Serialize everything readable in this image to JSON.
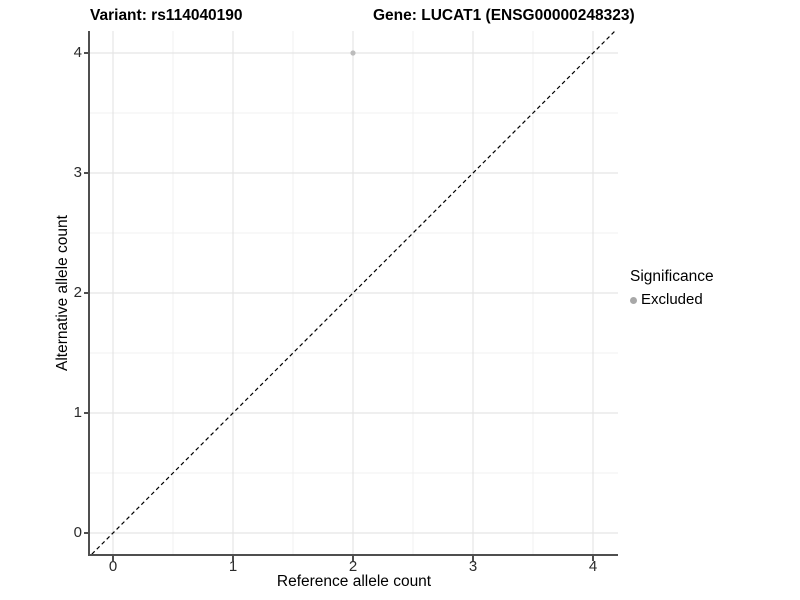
{
  "header": {
    "variant_title": "Variant: rs114040190",
    "gene_title": "Gene: LUCAT1 (ENSG00000248323)"
  },
  "axes": {
    "x_label": "Reference allele count",
    "y_label": "Alternative allele count",
    "x_tick_labels": [
      "0",
      "1",
      "2",
      "3",
      "4"
    ],
    "y_tick_labels": [
      "0",
      "1",
      "2",
      "3",
      "4"
    ]
  },
  "legend": {
    "title": "Significance",
    "items": [
      {
        "label": "Excluded",
        "color": "#a8a8a8",
        "marker": "circle"
      }
    ]
  },
  "theme": {
    "background": "#ffffff",
    "grid_major": "#e5e5e5",
    "grid_minor": "#f0f0f0",
    "axis_line": "#4f4f4f",
    "tick_label_color": "#2b2b2b",
    "title_color": "#000000"
  },
  "chart_data": {
    "type": "scatter",
    "title": "Variant: rs114040190   Gene: LUCAT1 (ENSG00000248323)",
    "xlabel": "Reference allele count",
    "ylabel": "Alternative allele count",
    "xlim": [
      -0.2,
      4.2
    ],
    "ylim": [
      -0.2,
      4.2
    ],
    "x_ticks": [
      0,
      1,
      2,
      3,
      4
    ],
    "y_ticks": [
      0,
      1,
      2,
      3,
      4
    ],
    "minor_ticks_x": [
      0.5,
      1.5,
      2.5,
      3.5
    ],
    "minor_ticks_y": [
      0.5,
      1.5,
      2.5,
      3.5
    ],
    "grid": "major and minor gridlines on white background",
    "legend_position": "right",
    "series": [
      {
        "name": "Excluded",
        "color": "#bcbcbc",
        "marker": "circle",
        "marker_radius": 2.6,
        "points": [
          {
            "x": 2,
            "y": 4
          }
        ]
      }
    ],
    "reference_line": {
      "equation": "y = x",
      "style": "dashed",
      "color": "#000000"
    }
  }
}
